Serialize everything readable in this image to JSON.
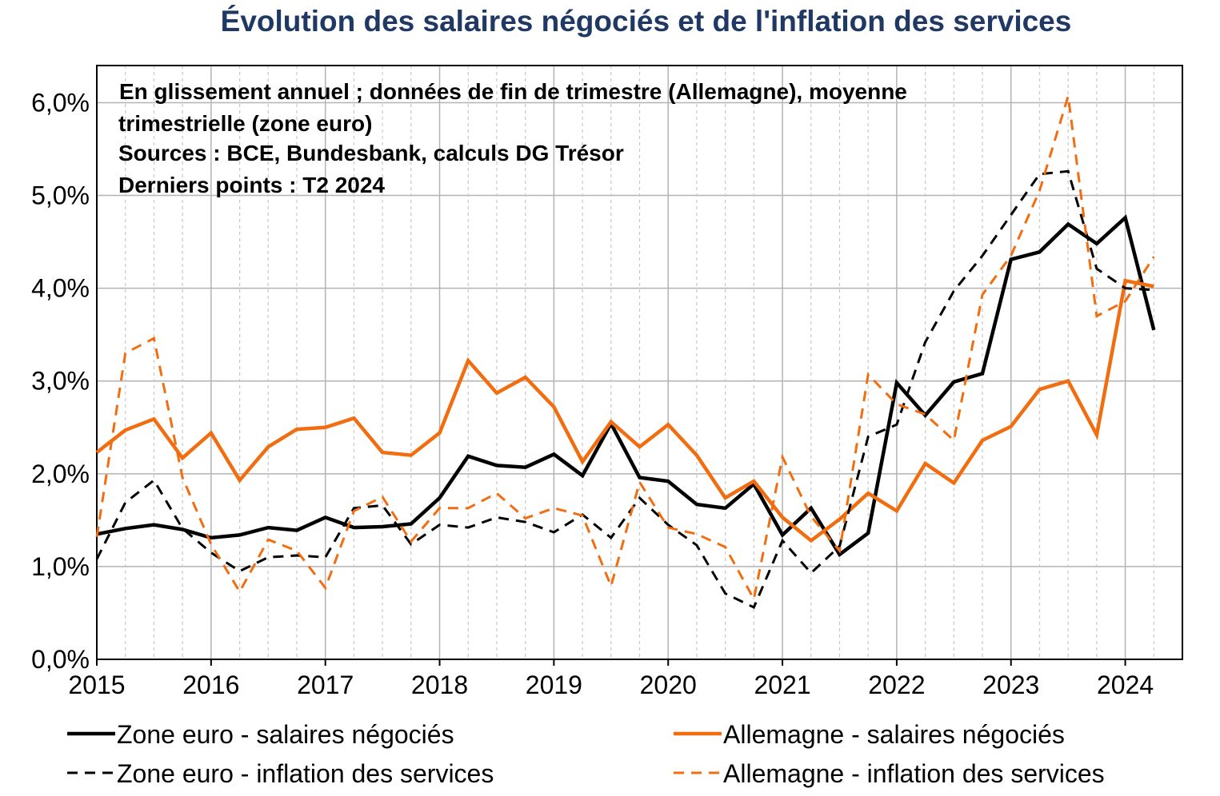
{
  "chart_data": {
    "type": "line",
    "title": "Évolution des salaires négociés et de l'inflation des services",
    "notes": [
      "En glissement annuel ; données de fin de trimestre (Allemagne), moyenne",
      "trimestrielle (zone euro)",
      "Sources : BCE, Bundesbank, calculs DG Trésor",
      "Derniers points : T2 2024"
    ],
    "x_tick_labels": [
      "2015",
      "2016",
      "2017",
      "2018",
      "2019",
      "2020",
      "2021",
      "2022",
      "2023",
      "2024"
    ],
    "y_tick_labels": [
      "0,0%",
      "1,0%",
      "2,0%",
      "3,0%",
      "4,0%",
      "5,0%",
      "6,0%"
    ],
    "ylim": [
      0,
      6.4
    ],
    "xlim": [
      2015.0,
      2024.5
    ],
    "grid": true,
    "legend_position": "bottom",
    "series": [
      {
        "name": "Zone euro - salaires négociés",
        "color": "#000000",
        "dash": "solid",
        "x": [
          2015.0,
          2015.25,
          2015.5,
          2015.75,
          2016.0,
          2016.25,
          2016.5,
          2016.75,
          2017.0,
          2017.25,
          2017.5,
          2017.75,
          2018.0,
          2018.25,
          2018.5,
          2018.75,
          2019.0,
          2019.25,
          2019.5,
          2019.75,
          2020.0,
          2020.25,
          2020.5,
          2020.75,
          2021.0,
          2021.25,
          2021.5,
          2021.75,
          2022.0,
          2022.25,
          2022.5,
          2022.75,
          2023.0,
          2023.25,
          2023.5,
          2023.75,
          2024.0,
          2024.25
        ],
        "y": [
          1.35,
          1.41,
          1.45,
          1.4,
          1.31,
          1.34,
          1.42,
          1.39,
          1.53,
          1.42,
          1.43,
          1.46,
          1.74,
          2.19,
          2.09,
          2.07,
          2.21,
          1.98,
          2.54,
          1.96,
          1.92,
          1.67,
          1.63,
          1.89,
          1.34,
          1.63,
          1.13,
          1.36,
          2.98,
          2.63,
          2.99,
          3.08,
          4.31,
          4.39,
          4.69,
          4.48,
          4.76,
          3.55
        ]
      },
      {
        "name": "Allemagne - salaires négociés",
        "color": "#f26d0f",
        "dash": "solid",
        "x": [
          2015.0,
          2015.25,
          2015.5,
          2015.75,
          2016.0,
          2016.25,
          2016.5,
          2016.75,
          2017.0,
          2017.25,
          2017.5,
          2017.75,
          2018.0,
          2018.25,
          2018.5,
          2018.75,
          2019.0,
          2019.25,
          2019.5,
          2019.75,
          2020.0,
          2020.25,
          2020.5,
          2020.75,
          2021.0,
          2021.25,
          2021.5,
          2021.75,
          2022.0,
          2022.25,
          2022.5,
          2022.75,
          2023.0,
          2023.25,
          2023.5,
          2023.75,
          2024.0,
          2024.25
        ],
        "y": [
          2.23,
          2.47,
          2.59,
          2.17,
          2.44,
          1.93,
          2.29,
          2.48,
          2.5,
          2.6,
          2.23,
          2.2,
          2.44,
          3.22,
          2.87,
          3.04,
          2.72,
          2.13,
          2.56,
          2.29,
          2.53,
          2.2,
          1.74,
          1.92,
          1.53,
          1.28,
          1.51,
          1.79,
          1.6,
          2.11,
          1.9,
          2.36,
          2.51,
          2.91,
          3.0,
          2.42,
          4.08,
          4.02
        ]
      },
      {
        "name": "Zone euro - inflation des services",
        "color": "#000000",
        "dash": "dashed",
        "x": [
          2015.0,
          2015.25,
          2015.5,
          2015.75,
          2016.0,
          2016.25,
          2016.5,
          2016.75,
          2017.0,
          2017.25,
          2017.5,
          2017.75,
          2018.0,
          2018.25,
          2018.5,
          2018.75,
          2019.0,
          2019.25,
          2019.5,
          2019.75,
          2020.0,
          2020.25,
          2020.5,
          2020.75,
          2021.0,
          2021.25,
          2021.5,
          2021.75,
          2022.0,
          2022.25,
          2022.5,
          2022.75,
          2023.0,
          2023.25,
          2023.5,
          2023.75,
          2024.0,
          2024.25
        ],
        "y": [
          1.08,
          1.69,
          1.93,
          1.41,
          1.15,
          0.95,
          1.1,
          1.12,
          1.1,
          1.63,
          1.66,
          1.24,
          1.45,
          1.42,
          1.53,
          1.48,
          1.37,
          1.56,
          1.31,
          1.74,
          1.45,
          1.23,
          0.71,
          0.56,
          1.28,
          0.93,
          1.22,
          2.4,
          2.53,
          3.42,
          3.97,
          4.35,
          4.79,
          5.23,
          5.26,
          4.21,
          4.0,
          3.98
        ]
      },
      {
        "name": "Allemagne - inflation des services",
        "color": "#f26d0f",
        "dash": "dashed",
        "x": [
          2015.0,
          2015.25,
          2015.5,
          2015.75,
          2016.0,
          2016.25,
          2016.5,
          2016.75,
          2017.0,
          2017.25,
          2017.5,
          2017.75,
          2018.0,
          2018.25,
          2018.5,
          2018.75,
          2019.0,
          2019.25,
          2019.5,
          2019.75,
          2020.0,
          2020.25,
          2020.5,
          2020.75,
          2021.0,
          2021.25,
          2021.5,
          2021.75,
          2022.0,
          2022.25,
          2022.5,
          2022.75,
          2023.0,
          2023.25,
          2023.5,
          2023.75,
          2024.0,
          2024.25
        ],
        "y": [
          1.32,
          3.3,
          3.46,
          1.96,
          1.24,
          0.73,
          1.29,
          1.17,
          0.77,
          1.6,
          1.75,
          1.27,
          1.63,
          1.63,
          1.79,
          1.52,
          1.63,
          1.55,
          0.79,
          1.91,
          1.42,
          1.35,
          1.21,
          0.65,
          2.18,
          1.54,
          1.17,
          3.07,
          2.75,
          2.64,
          2.36,
          3.93,
          4.35,
          5.05,
          6.07,
          3.7,
          3.86,
          4.34
        ]
      }
    ]
  }
}
